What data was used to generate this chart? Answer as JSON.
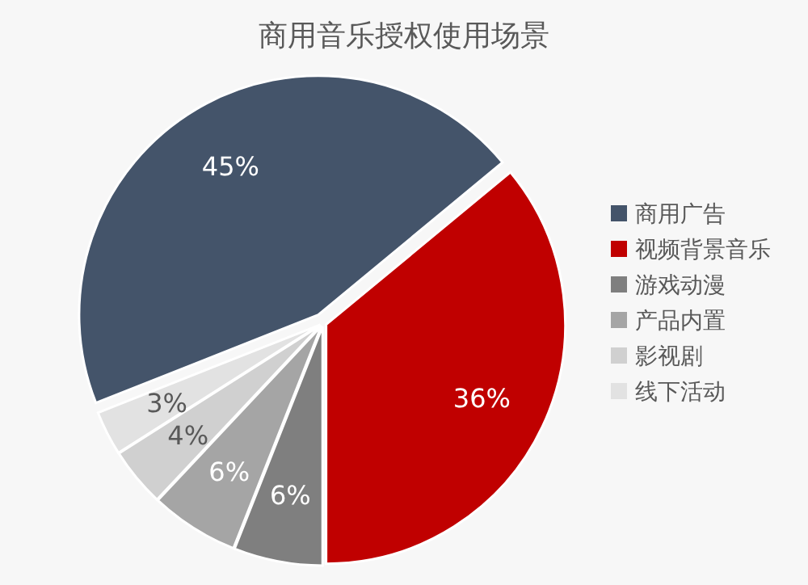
{
  "chart_data": {
    "type": "pie",
    "title": "商用音乐授权使用场景",
    "categories": [
      "商用广告",
      "视频背景音乐",
      "游戏动漫",
      "产品内置",
      "影视剧",
      "线下活动"
    ],
    "values": [
      45,
      36,
      6,
      6,
      4,
      3
    ],
    "value_labels": [
      "45%",
      "36%",
      "6%",
      "6%",
      "4%",
      "3%"
    ],
    "colors": [
      "#44546a",
      "#c00000",
      "#7f7f7f",
      "#a5a5a5",
      "#d0d0d0",
      "#e2e2e2"
    ],
    "legend": "right"
  }
}
